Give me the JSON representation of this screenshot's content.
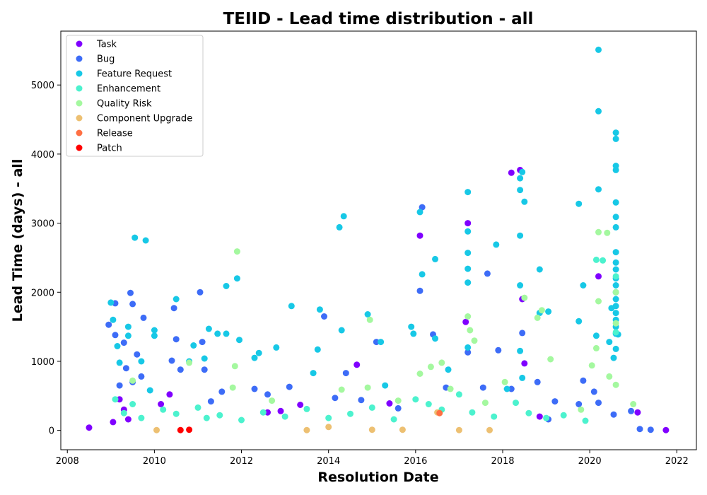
{
  "chart_data": {
    "type": "scatter",
    "title": "TEIID - Lead time distribution - all",
    "xlabel": "Resolution Date",
    "ylabel": "Lead Time (days) - all",
    "xlim": [
      2007.85,
      2022.45
    ],
    "ylim": [
      -280,
      5780
    ],
    "xticks": [
      2008,
      2010,
      2012,
      2014,
      2016,
      2018,
      2020,
      2022
    ],
    "yticks": [
      0,
      1000,
      2000,
      3000,
      4000,
      5000
    ],
    "grid": false,
    "legend_position": "top-left",
    "series": [
      {
        "name": "Task",
        "color": "#8000ff",
        "points": [
          [
            2008.5,
            40
          ],
          [
            2009.05,
            120
          ],
          [
            2009.2,
            450
          ],
          [
            2009.3,
            300
          ],
          [
            2009.4,
            160
          ],
          [
            2010.15,
            380
          ],
          [
            2010.35,
            520
          ],
          [
            2012.6,
            260
          ],
          [
            2012.9,
            280
          ],
          [
            2013.35,
            370
          ],
          [
            2014.65,
            950
          ],
          [
            2015.4,
            390
          ],
          [
            2016.1,
            2820
          ],
          [
            2017.2,
            3000
          ],
          [
            2017.15,
            1570
          ],
          [
            2018.2,
            3730
          ],
          [
            2018.4,
            3770
          ],
          [
            2018.45,
            1900
          ],
          [
            2018.5,
            970
          ],
          [
            2018.85,
            200
          ],
          [
            2020.2,
            2230
          ],
          [
            2021.1,
            260
          ],
          [
            2021.75,
            5
          ]
        ]
      },
      {
        "name": "Bug",
        "color": "#3d6cf7",
        "points": [
          [
            2008.95,
            1530
          ],
          [
            2009.1,
            1840
          ],
          [
            2009.3,
            1270
          ],
          [
            2009.45,
            1990
          ],
          [
            2009.5,
            1830
          ],
          [
            2009.6,
            1100
          ],
          [
            2009.75,
            1630
          ],
          [
            2009.1,
            1380
          ],
          [
            2009.2,
            650
          ],
          [
            2009.35,
            900
          ],
          [
            2009.5,
            700
          ],
          [
            2009.7,
            780
          ],
          [
            2010.4,
            1010
          ],
          [
            2010.45,
            1770
          ],
          [
            2010.6,
            880
          ],
          [
            2010.5,
            1320
          ],
          [
            2011.05,
            2000
          ],
          [
            2011.1,
            1280
          ],
          [
            2011.15,
            880
          ],
          [
            2011.3,
            420
          ],
          [
            2011.55,
            560
          ],
          [
            2012.3,
            600
          ],
          [
            2012.6,
            520
          ],
          [
            2013.1,
            630
          ],
          [
            2013.9,
            1650
          ],
          [
            2014.15,
            470
          ],
          [
            2014.4,
            830
          ],
          [
            2014.75,
            440
          ],
          [
            2015.1,
            1280
          ],
          [
            2015.6,
            320
          ],
          [
            2016.1,
            2020
          ],
          [
            2016.15,
            3230
          ],
          [
            2016.4,
            1390
          ],
          [
            2016.7,
            620
          ],
          [
            2017.2,
            1130
          ],
          [
            2017.55,
            620
          ],
          [
            2017.65,
            2270
          ],
          [
            2017.9,
            1160
          ],
          [
            2018.2,
            600
          ],
          [
            2018.45,
            1410
          ],
          [
            2018.8,
            700
          ],
          [
            2019.05,
            160
          ],
          [
            2019.2,
            420
          ],
          [
            2019.75,
            380
          ],
          [
            2019.85,
            720
          ],
          [
            2020.1,
            560
          ],
          [
            2020.2,
            400
          ],
          [
            2020.55,
            230
          ],
          [
            2020.95,
            280
          ],
          [
            2021.15,
            20
          ],
          [
            2021.4,
            10
          ]
        ]
      },
      {
        "name": "Feature Request",
        "color": "#17c8e6",
        "points": [
          [
            2009.0,
            1850
          ],
          [
            2009.05,
            1600
          ],
          [
            2009.15,
            1220
          ],
          [
            2009.2,
            980
          ],
          [
            2009.4,
            1370
          ],
          [
            2009.4,
            1500
          ],
          [
            2009.55,
            2790
          ],
          [
            2009.8,
            2750
          ],
          [
            2009.7,
            1000
          ],
          [
            2009.9,
            580
          ],
          [
            2010.0,
            1450
          ],
          [
            2010.0,
            1370
          ],
          [
            2010.5,
            1900
          ],
          [
            2010.8,
            1000
          ],
          [
            2010.9,
            1230
          ],
          [
            2011.15,
            1040
          ],
          [
            2011.25,
            1470
          ],
          [
            2011.45,
            1400
          ],
          [
            2011.65,
            2090
          ],
          [
            2011.65,
            1400
          ],
          [
            2011.9,
            2200
          ],
          [
            2011.95,
            1310
          ],
          [
            2012.3,
            1050
          ],
          [
            2012.4,
            1120
          ],
          [
            2012.8,
            1200
          ],
          [
            2013.15,
            1800
          ],
          [
            2013.65,
            830
          ],
          [
            2013.75,
            1170
          ],
          [
            2013.8,
            1750
          ],
          [
            2014.25,
            2940
          ],
          [
            2014.35,
            3100
          ],
          [
            2014.3,
            1450
          ],
          [
            2014.9,
            1680
          ],
          [
            2015.2,
            1280
          ],
          [
            2015.3,
            650
          ],
          [
            2015.9,
            1500
          ],
          [
            2015.95,
            1400
          ],
          [
            2016.1,
            3160
          ],
          [
            2016.15,
            2260
          ],
          [
            2016.45,
            2480
          ],
          [
            2016.45,
            1330
          ],
          [
            2016.75,
            880
          ],
          [
            2017.2,
            3450
          ],
          [
            2017.2,
            2880
          ],
          [
            2017.2,
            2570
          ],
          [
            2017.2,
            2340
          ],
          [
            2017.2,
            2140
          ],
          [
            2017.2,
            1200
          ],
          [
            2017.85,
            2690
          ],
          [
            2018.1,
            600
          ],
          [
            2018.4,
            3650
          ],
          [
            2018.4,
            3480
          ],
          [
            2018.4,
            2820
          ],
          [
            2018.4,
            2100
          ],
          [
            2018.45,
            3740
          ],
          [
            2018.5,
            3310
          ],
          [
            2018.4,
            1150
          ],
          [
            2018.45,
            760
          ],
          [
            2018.85,
            2330
          ],
          [
            2018.85,
            1700
          ],
          [
            2019.05,
            1720
          ],
          [
            2019.75,
            3280
          ],
          [
            2019.75,
            1580
          ],
          [
            2019.85,
            2100
          ],
          [
            2020.2,
            5510
          ],
          [
            2020.2,
            4620
          ],
          [
            2020.2,
            3490
          ],
          [
            2020.15,
            1370
          ],
          [
            2020.45,
            1280
          ],
          [
            2020.5,
            1770
          ],
          [
            2020.55,
            1050
          ],
          [
            2020.6,
            4310
          ],
          [
            2020.6,
            4220
          ],
          [
            2020.6,
            3830
          ],
          [
            2020.6,
            3770
          ],
          [
            2020.6,
            3300
          ],
          [
            2020.6,
            3090
          ],
          [
            2020.6,
            2940
          ],
          [
            2020.6,
            2580
          ],
          [
            2020.6,
            2430
          ],
          [
            2020.6,
            2330
          ],
          [
            2020.6,
            2200
          ],
          [
            2020.6,
            2100
          ],
          [
            2020.6,
            2000
          ],
          [
            2020.6,
            1900
          ],
          [
            2020.6,
            1800
          ],
          [
            2020.6,
            1700
          ],
          [
            2020.6,
            1600
          ],
          [
            2020.6,
            1500
          ],
          [
            2020.6,
            1400
          ],
          [
            2020.6,
            1180
          ],
          [
            2020.65,
            1390
          ]
        ]
      },
      {
        "name": "Enhancement",
        "color": "#4cf2ce",
        "points": [
          [
            2009.1,
            450
          ],
          [
            2009.3,
            250
          ],
          [
            2009.5,
            380
          ],
          [
            2009.7,
            180
          ],
          [
            2010.2,
            300
          ],
          [
            2010.5,
            240
          ],
          [
            2011.0,
            330
          ],
          [
            2011.2,
            180
          ],
          [
            2011.5,
            220
          ],
          [
            2012.0,
            150
          ],
          [
            2012.5,
            260
          ],
          [
            2013.0,
            200
          ],
          [
            2013.5,
            310
          ],
          [
            2014.0,
            180
          ],
          [
            2014.5,
            240
          ],
          [
            2015.0,
            330
          ],
          [
            2015.5,
            160
          ],
          [
            2016.0,
            450
          ],
          [
            2016.3,
            380
          ],
          [
            2016.6,
            300
          ],
          [
            2017.0,
            520
          ],
          [
            2017.3,
            260
          ],
          [
            2017.8,
            200
          ],
          [
            2018.3,
            400
          ],
          [
            2018.6,
            250
          ],
          [
            2019.0,
            180
          ],
          [
            2019.4,
            220
          ],
          [
            2019.9,
            140
          ],
          [
            2020.15,
            2470
          ],
          [
            2020.3,
            2460
          ],
          [
            2020.6,
            2230
          ],
          [
            2020.6,
            1420
          ]
        ]
      },
      {
        "name": "Quality Risk",
        "color": "#a4f89f",
        "points": [
          [
            2009.5,
            720
          ],
          [
            2010.8,
            980
          ],
          [
            2011.9,
            2590
          ],
          [
            2011.85,
            930
          ],
          [
            2011.8,
            620
          ],
          [
            2012.7,
            430
          ],
          [
            2014.3,
            590
          ],
          [
            2014.9,
            620
          ],
          [
            2014.95,
            1600
          ],
          [
            2015.6,
            430
          ],
          [
            2016.1,
            820
          ],
          [
            2016.35,
            920
          ],
          [
            2016.6,
            980
          ],
          [
            2016.8,
            600
          ],
          [
            2017.2,
            1650
          ],
          [
            2017.25,
            1450
          ],
          [
            2017.35,
            1300
          ],
          [
            2017.6,
            400
          ],
          [
            2018.05,
            700
          ],
          [
            2018.5,
            1920
          ],
          [
            2018.8,
            1630
          ],
          [
            2018.9,
            1740
          ],
          [
            2019.1,
            1030
          ],
          [
            2019.8,
            300
          ],
          [
            2020.05,
            940
          ],
          [
            2020.15,
            1190
          ],
          [
            2020.2,
            1870
          ],
          [
            2020.2,
            2870
          ],
          [
            2020.4,
            2860
          ],
          [
            2020.45,
            780
          ],
          [
            2020.6,
            2000
          ],
          [
            2020.6,
            1550
          ],
          [
            2020.6,
            660
          ],
          [
            2021.0,
            380
          ]
        ]
      },
      {
        "name": "Component Upgrade",
        "color": "#edc072",
        "points": [
          [
            2010.05,
            5
          ],
          [
            2013.5,
            5
          ],
          [
            2014.0,
            50
          ],
          [
            2015.0,
            10
          ],
          [
            2015.7,
            10
          ],
          [
            2016.5,
            260
          ],
          [
            2017.0,
            5
          ],
          [
            2017.7,
            5
          ]
        ]
      },
      {
        "name": "Release",
        "color": "#ff7043",
        "points": [
          [
            2016.55,
            250
          ]
        ]
      },
      {
        "name": "Patch",
        "color": "#ff0000",
        "points": [
          [
            2010.6,
            5
          ],
          [
            2010.8,
            10
          ]
        ]
      }
    ]
  }
}
